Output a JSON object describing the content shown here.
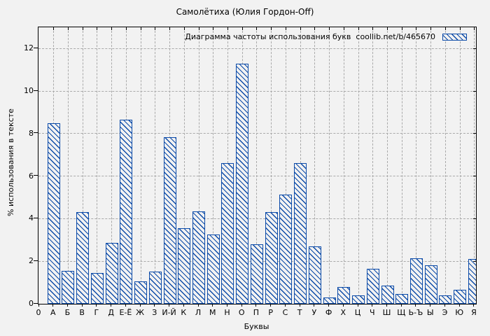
{
  "chart_data": {
    "type": "bar",
    "title": "Самолётиха (Юлия Гордон-Off)",
    "legend_label": "Диаграмма частоты использования букв  coollib.net/b/465670",
    "legend_position": "top-right",
    "xlabel": "Буквы",
    "ylabel": "% использования в тексте",
    "origin_tick_label": "0",
    "categories": [
      "А",
      "Б",
      "В",
      "Г",
      "Д",
      "Е-Ё",
      "Ж",
      "З",
      "И-Й",
      "К",
      "Л",
      "М",
      "Н",
      "О",
      "П",
      "Р",
      "С",
      "Т",
      "У",
      "Ф",
      "Х",
      "Ц",
      "Ч",
      "Ш",
      "Щ",
      "Ь-Ъ",
      "Ы",
      "Э",
      "Ю",
      "Я"
    ],
    "values": [
      8.5,
      1.55,
      4.3,
      1.45,
      2.85,
      8.65,
      1.05,
      1.5,
      7.85,
      3.55,
      4.35,
      3.25,
      6.6,
      11.3,
      2.8,
      4.3,
      5.15,
      6.6,
      2.7,
      0.3,
      0.8,
      0.4,
      1.65,
      0.85,
      0.45,
      2.15,
      1.8,
      0.4,
      0.65,
      2.1
    ],
    "yticks": [
      0,
      2,
      4,
      6,
      8,
      10,
      12
    ],
    "ylim": [
      0,
      13
    ],
    "grid": true,
    "colors": {
      "bar": "#0b4aa8",
      "grid": "#a9a9a9",
      "background": "#f2f2f2",
      "axis": "#000000",
      "text": "#000000"
    }
  }
}
